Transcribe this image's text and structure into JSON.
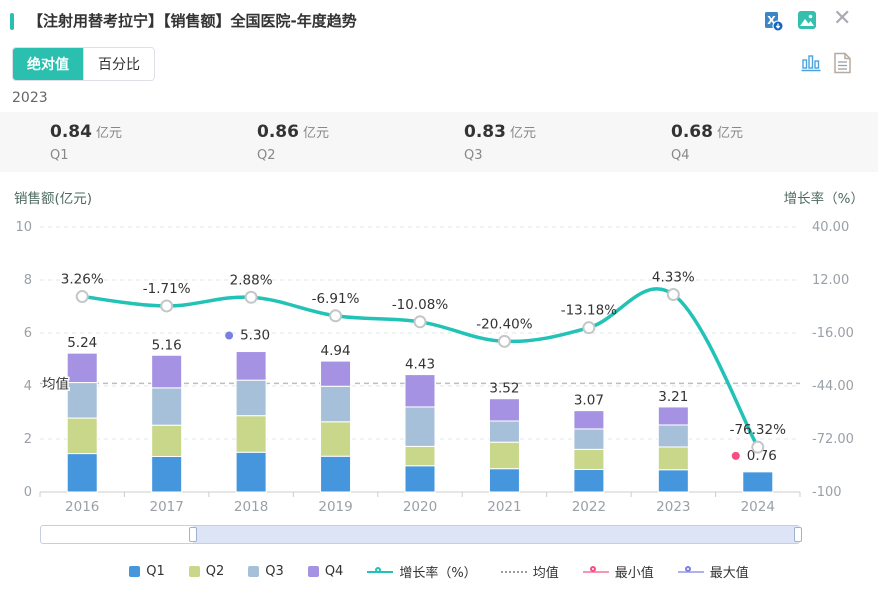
{
  "header": {
    "title": "【注射用替考拉宁】【销售额】全国医院-年度趋势",
    "accent_color": "#2abfae",
    "icons": [
      "excel-export-icon",
      "image-export-icon",
      "close-icon"
    ]
  },
  "toolbar": {
    "tabs": [
      {
        "label": "绝对值",
        "active": true
      },
      {
        "label": "百分比",
        "active": false
      }
    ],
    "icons": [
      "bar-chart-view-icon",
      "table-view-icon"
    ]
  },
  "period_label": "2023",
  "summary": {
    "items": [
      {
        "value": "0.84",
        "unit": "亿元",
        "label": "Q1"
      },
      {
        "value": "0.86",
        "unit": "亿元",
        "label": "Q2"
      },
      {
        "value": "0.83",
        "unit": "亿元",
        "label": "Q3"
      },
      {
        "value": "0.68",
        "unit": "亿元",
        "label": "Q4"
      }
    ]
  },
  "chart_data": {
    "type": "bar",
    "variant": "stacked-bars-with-growth-line",
    "categories": [
      "2016",
      "2017",
      "2018",
      "2019",
      "2020",
      "2021",
      "2022",
      "2023",
      "2024"
    ],
    "series": [
      {
        "name": "Q1",
        "color": "#4596dd",
        "values": [
          1.45,
          1.34,
          1.5,
          1.35,
          0.99,
          0.88,
          0.85,
          0.84,
          0.76
        ]
      },
      {
        "name": "Q2",
        "color": "#c8d78a",
        "values": [
          1.34,
          1.18,
          1.38,
          1.3,
          0.73,
          1.0,
          0.76,
          0.86,
          0
        ]
      },
      {
        "name": "Q3",
        "color": "#a7c0d9",
        "values": [
          1.34,
          1.41,
          1.34,
          1.34,
          1.49,
          0.8,
          0.77,
          0.83,
          0
        ]
      },
      {
        "name": "Q4",
        "color": "#a592e2",
        "values": [
          1.11,
          1.23,
          1.08,
          0.95,
          1.22,
          0.84,
          0.69,
          0.68,
          0
        ]
      }
    ],
    "totals": [
      "5.24",
      "5.16",
      "5.30",
      "4.94",
      "4.43",
      "3.52",
      "3.07",
      "3.21",
      "0.76"
    ],
    "line_series": {
      "name": "增长率（%）",
      "color": "#23c2b6",
      "values": [
        3.26,
        -1.71,
        2.88,
        -6.91,
        -10.08,
        -20.4,
        -13.18,
        4.33,
        -76.32
      ],
      "labels": [
        "3.26%",
        "-1.71%",
        "2.88%",
        "-6.91%",
        "-10.08%",
        "-20.40%",
        "-13.18%",
        "4.33%",
        "-76.32%"
      ]
    },
    "left_axis": {
      "title": "销售额(亿元)",
      "ticks": [
        "10",
        "8",
        "6",
        "4",
        "2",
        "0"
      ],
      "min": 0,
      "max": 10
    },
    "right_axis": {
      "title": "增长率（%）",
      "ticks": [
        "40.00",
        "12.00",
        "-16.00",
        "-44.00",
        "-72.00",
        "-100"
      ],
      "min": -100,
      "max": 40
    },
    "mean_line": {
      "label": "均值",
      "value": 4.1
    },
    "max_point": {
      "category": "2018",
      "index": 2,
      "value": "5.30",
      "color": "#7a7fe3"
    },
    "min_point": {
      "category": "2024",
      "index": 8,
      "value": "0.76",
      "color": "#f74d80"
    },
    "grid": true
  },
  "scrollbar": {
    "start_percent": 20,
    "end_percent": 100
  },
  "legend": {
    "items": [
      {
        "label": "Q1",
        "type": "square",
        "color": "#4596dd"
      },
      {
        "label": "Q2",
        "type": "square",
        "color": "#c8d78a"
      },
      {
        "label": "Q3",
        "type": "square",
        "color": "#a7c0d9"
      },
      {
        "label": "Q4",
        "type": "square",
        "color": "#a592e2"
      },
      {
        "label": "增长率（%）",
        "type": "line-circle",
        "color": "#23c2b6"
      },
      {
        "label": "均值",
        "type": "dashed",
        "color": "#9a9a9a"
      },
      {
        "label": "最小值",
        "type": "ring",
        "color": "#f74d80"
      },
      {
        "label": "最大值",
        "type": "ring",
        "color": "#7a7fe3"
      }
    ]
  }
}
